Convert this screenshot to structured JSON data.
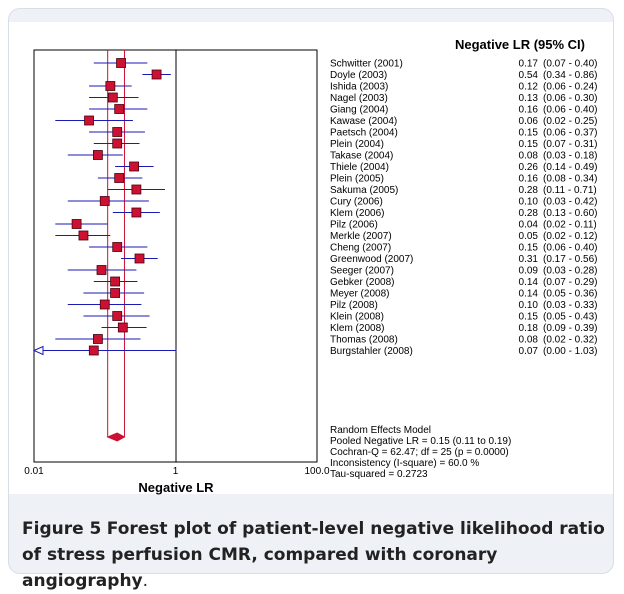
{
  "chart_data": {
    "type": "forest",
    "header": "Negative LR (95% CI)",
    "xlabel": "Negative LR",
    "x_scale": "log",
    "xlim": [
      0.01,
      100
    ],
    "x_ticks": [
      "0.01",
      "1",
      "100.0"
    ],
    "studies": [
      {
        "name": "Schwitter (2001)",
        "lr": 0.17,
        "ci": [
          0.07,
          0.4
        ],
        "text": "0.17",
        "ci_text": "(0.07 - 0.40)"
      },
      {
        "name": "Doyle (2003)",
        "lr": 0.54,
        "ci": [
          0.34,
          0.86
        ],
        "text": "0.54",
        "ci_text": "(0.34 - 0.86)"
      },
      {
        "name": "Ishida (2003)",
        "lr": 0.12,
        "ci": [
          0.06,
          0.24
        ],
        "text": "0.12",
        "ci_text": "(0.06 - 0.24)"
      },
      {
        "name": "Nagel (2003)",
        "lr": 0.13,
        "ci": [
          0.06,
          0.3
        ],
        "text": "0.13",
        "ci_text": "(0.06 - 0.30)"
      },
      {
        "name": "Giang (2004)",
        "lr": 0.16,
        "ci": [
          0.06,
          0.4
        ],
        "text": "0.16",
        "ci_text": "(0.06 - 0.40)"
      },
      {
        "name": "Kawase (2004)",
        "lr": 0.06,
        "ci": [
          0.02,
          0.25
        ],
        "text": "0.06",
        "ci_text": "(0.02 - 0.25)"
      },
      {
        "name": "Paetsch (2004)",
        "lr": 0.15,
        "ci": [
          0.06,
          0.37
        ],
        "text": "0.15",
        "ci_text": "(0.06 - 0.37)"
      },
      {
        "name": "Plein (2004)",
        "lr": 0.15,
        "ci": [
          0.07,
          0.31
        ],
        "text": "0.15",
        "ci_text": "(0.07 - 0.31)"
      },
      {
        "name": "Takase (2004)",
        "lr": 0.08,
        "ci": [
          0.03,
          0.18
        ],
        "text": "0.08",
        "ci_text": "(0.03 - 0.18)"
      },
      {
        "name": "Thiele (2004)",
        "lr": 0.26,
        "ci": [
          0.14,
          0.49
        ],
        "text": "0.26",
        "ci_text": "(0.14 - 0.49)"
      },
      {
        "name": "Plein (2005)",
        "lr": 0.16,
        "ci": [
          0.08,
          0.34
        ],
        "text": "0.16",
        "ci_text": "(0.08 - 0.34)"
      },
      {
        "name": "Sakuma (2005)",
        "lr": 0.28,
        "ci": [
          0.11,
          0.71
        ],
        "text": "0.28",
        "ci_text": "(0.11 - 0.71)"
      },
      {
        "name": "Cury (2006)",
        "lr": 0.1,
        "ci": [
          0.03,
          0.42
        ],
        "text": "0.10",
        "ci_text": "(0.03 - 0.42)"
      },
      {
        "name": "Klem (2006)",
        "lr": 0.28,
        "ci": [
          0.13,
          0.6
        ],
        "text": "0.28",
        "ci_text": "(0.13 - 0.60)"
      },
      {
        "name": "Pilz (2006)",
        "lr": 0.04,
        "ci": [
          0.02,
          0.11
        ],
        "text": "0.04",
        "ci_text": "(0.02 - 0.11)"
      },
      {
        "name": "Merkle (2007)",
        "lr": 0.05,
        "ci": [
          0.02,
          0.12
        ],
        "text": "0.05",
        "ci_text": "(0.02 - 0.12)"
      },
      {
        "name": "Cheng (2007)",
        "lr": 0.15,
        "ci": [
          0.06,
          0.4
        ],
        "text": "0.15",
        "ci_text": "(0.06 - 0.40)"
      },
      {
        "name": "Greenwood (2007)",
        "lr": 0.31,
        "ci": [
          0.17,
          0.56
        ],
        "text": "0.31",
        "ci_text": "(0.17 - 0.56)"
      },
      {
        "name": "Seeger (2007)",
        "lr": 0.09,
        "ci": [
          0.03,
          0.28
        ],
        "text": "0.09",
        "ci_text": "(0.03 - 0.28)"
      },
      {
        "name": "Gebker (2008)",
        "lr": 0.14,
        "ci": [
          0.07,
          0.29
        ],
        "text": "0.14",
        "ci_text": "(0.07 - 0.29)"
      },
      {
        "name": "Meyer (2008)",
        "lr": 0.14,
        "ci": [
          0.05,
          0.36
        ],
        "text": "0.14",
        "ci_text": "(0.05 - 0.36)"
      },
      {
        "name": "Pilz (2008)",
        "lr": 0.1,
        "ci": [
          0.03,
          0.33
        ],
        "text": "0.10",
        "ci_text": "(0.03 - 0.33)"
      },
      {
        "name": "Klein (2008)",
        "lr": 0.15,
        "ci": [
          0.05,
          0.43
        ],
        "text": "0.15",
        "ci_text": "(0.05 - 0.43)"
      },
      {
        "name": "Klem (2008)",
        "lr": 0.18,
        "ci": [
          0.09,
          0.39
        ],
        "text": "0.18",
        "ci_text": "(0.09 - 0.39)"
      },
      {
        "name": "Thomas (2008)",
        "lr": 0.08,
        "ci": [
          0.02,
          0.32
        ],
        "text": "0.08",
        "ci_text": "(0.02 - 0.32)"
      },
      {
        "name": "Burgstahler (2008)",
        "lr": 0.07,
        "ci": [
          0.0,
          1.03
        ],
        "text": "0.07",
        "ci_text": "(0.00 - 1.03)"
      }
    ],
    "pooled": {
      "lr": 0.15,
      "ci": [
        0.11,
        0.19
      ]
    },
    "summary_lines": [
      "Random Effects Model",
      "Pooled Negative LR = 0.15 (0.11 to 0.19)",
      "Cochran-Q = 62.47; df = 25 (p = 0.0000)",
      "Inconsistency (I-square) = 60.0 %",
      "Tau-squared = 0.2723"
    ],
    "colors": {
      "box": "#cc1133",
      "ci_line": "#1a1ab4",
      "pooled_line": "#cc1133",
      "axis": "#000000"
    }
  },
  "caption": {
    "label": "Figure 5",
    "text": "Forest plot of patient-level negative likelihood ratio of stress perfusion CMR, compared with coronary angiography",
    "end": "."
  }
}
